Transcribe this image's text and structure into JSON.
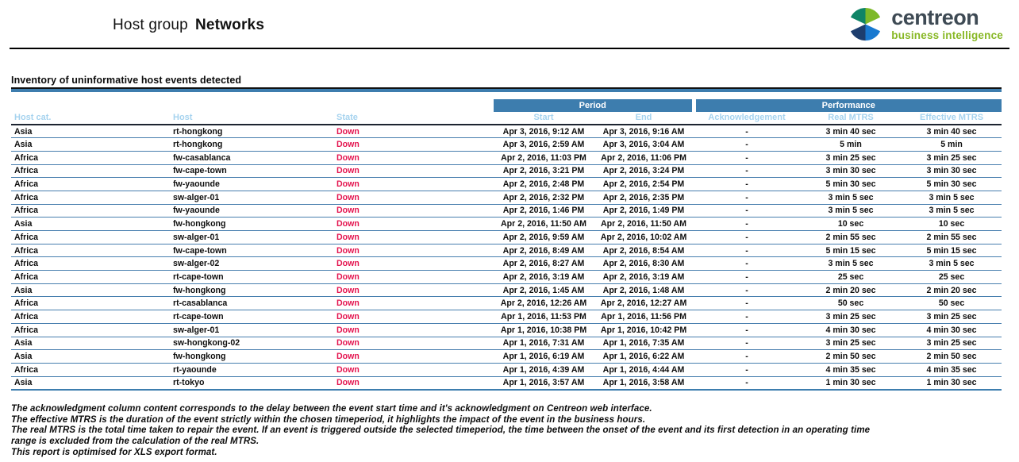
{
  "header": {
    "title_prefix": "Host group",
    "title_name": "Networks",
    "logo": {
      "brand": "centreon",
      "tagline": "business intelligence"
    }
  },
  "section": {
    "title": "Inventory of uninformative host events detected"
  },
  "table": {
    "group_headers": {
      "period": "Period",
      "performance": "Performance"
    },
    "columns": [
      "Host cat.",
      "Host",
      "State",
      "Start",
      "End",
      "Acknowledgement",
      "Real MTRS",
      "Effective MTRS"
    ],
    "rows": [
      {
        "host_cat": "Asia",
        "host": "rt-hongkong",
        "state": "Down",
        "start": "Apr 3, 2016, 9:12 AM",
        "end": "Apr 3, 2016, 9:16 AM",
        "ack": "-",
        "real_mtrs": "3 min 40 sec",
        "effective_mtrs": "3 min 40 sec"
      },
      {
        "host_cat": "Asia",
        "host": "rt-hongkong",
        "state": "Down",
        "start": "Apr 3, 2016, 2:59 AM",
        "end": "Apr 3, 2016, 3:04 AM",
        "ack": "-",
        "real_mtrs": "5 min",
        "effective_mtrs": "5 min"
      },
      {
        "host_cat": "Africa",
        "host": "fw-casablanca",
        "state": "Down",
        "start": "Apr 2, 2016, 11:03 PM",
        "end": "Apr 2, 2016, 11:06 PM",
        "ack": "-",
        "real_mtrs": "3 min 25 sec",
        "effective_mtrs": "3 min 25 sec"
      },
      {
        "host_cat": "Africa",
        "host": "fw-cape-town",
        "state": "Down",
        "start": "Apr 2, 2016, 3:21 PM",
        "end": "Apr 2, 2016, 3:24 PM",
        "ack": "-",
        "real_mtrs": "3 min 30 sec",
        "effective_mtrs": "3 min 30 sec"
      },
      {
        "host_cat": "Africa",
        "host": "fw-yaounde",
        "state": "Down",
        "start": "Apr 2, 2016, 2:48 PM",
        "end": "Apr 2, 2016, 2:54 PM",
        "ack": "-",
        "real_mtrs": "5 min 30 sec",
        "effective_mtrs": "5 min 30 sec"
      },
      {
        "host_cat": "Africa",
        "host": "sw-alger-01",
        "state": "Down",
        "start": "Apr 2, 2016, 2:32 PM",
        "end": "Apr 2, 2016, 2:35 PM",
        "ack": "-",
        "real_mtrs": "3 min 5 sec",
        "effective_mtrs": "3 min 5 sec"
      },
      {
        "host_cat": "Africa",
        "host": "fw-yaounde",
        "state": "Down",
        "start": "Apr 2, 2016, 1:46 PM",
        "end": "Apr 2, 2016, 1:49 PM",
        "ack": "-",
        "real_mtrs": "3 min 5 sec",
        "effective_mtrs": "3 min 5 sec"
      },
      {
        "host_cat": "Asia",
        "host": "fw-hongkong",
        "state": "Down",
        "start": "Apr 2, 2016, 11:50 AM",
        "end": "Apr 2, 2016, 11:50 AM",
        "ack": "-",
        "real_mtrs": "10 sec",
        "effective_mtrs": "10 sec"
      },
      {
        "host_cat": "Africa",
        "host": "sw-alger-01",
        "state": "Down",
        "start": "Apr 2, 2016, 9:59 AM",
        "end": "Apr 2, 2016, 10:02 AM",
        "ack": "-",
        "real_mtrs": "2 min 55 sec",
        "effective_mtrs": "2 min 55 sec"
      },
      {
        "host_cat": "Africa",
        "host": "fw-cape-town",
        "state": "Down",
        "start": "Apr 2, 2016, 8:49 AM",
        "end": "Apr 2, 2016, 8:54 AM",
        "ack": "-",
        "real_mtrs": "5 min 15 sec",
        "effective_mtrs": "5 min 15 sec"
      },
      {
        "host_cat": "Africa",
        "host": "sw-alger-02",
        "state": "Down",
        "start": "Apr 2, 2016, 8:27 AM",
        "end": "Apr 2, 2016, 8:30 AM",
        "ack": "-",
        "real_mtrs": "3 min 5 sec",
        "effective_mtrs": "3 min 5 sec"
      },
      {
        "host_cat": "Africa",
        "host": "rt-cape-town",
        "state": "Down",
        "start": "Apr 2, 2016, 3:19 AM",
        "end": "Apr 2, 2016, 3:19 AM",
        "ack": "-",
        "real_mtrs": "25 sec",
        "effective_mtrs": "25 sec"
      },
      {
        "host_cat": "Asia",
        "host": "fw-hongkong",
        "state": "Down",
        "start": "Apr 2, 2016, 1:45 AM",
        "end": "Apr 2, 2016, 1:48 AM",
        "ack": "-",
        "real_mtrs": "2 min 20 sec",
        "effective_mtrs": "2 min 20 sec"
      },
      {
        "host_cat": "Africa",
        "host": "rt-casablanca",
        "state": "Down",
        "start": "Apr 2, 2016, 12:26 AM",
        "end": "Apr 2, 2016, 12:27 AM",
        "ack": "-",
        "real_mtrs": "50 sec",
        "effective_mtrs": "50 sec"
      },
      {
        "host_cat": "Africa",
        "host": "rt-cape-town",
        "state": "Down",
        "start": "Apr 1, 2016, 11:53 PM",
        "end": "Apr 1, 2016, 11:56 PM",
        "ack": "-",
        "real_mtrs": "3 min 25 sec",
        "effective_mtrs": "3 min 25 sec"
      },
      {
        "host_cat": "Africa",
        "host": "sw-alger-01",
        "state": "Down",
        "start": "Apr 1, 2016, 10:38 PM",
        "end": "Apr 1, 2016, 10:42 PM",
        "ack": "-",
        "real_mtrs": "4 min 30 sec",
        "effective_mtrs": "4 min 30 sec"
      },
      {
        "host_cat": "Asia",
        "host": "sw-hongkong-02",
        "state": "Down",
        "start": "Apr 1, 2016, 7:31 AM",
        "end": "Apr 1, 2016, 7:35 AM",
        "ack": "-",
        "real_mtrs": "3 min 25 sec",
        "effective_mtrs": "3 min 25 sec"
      },
      {
        "host_cat": "Asia",
        "host": "fw-hongkong",
        "state": "Down",
        "start": "Apr 1, 2016, 6:19 AM",
        "end": "Apr 1, 2016, 6:22 AM",
        "ack": "-",
        "real_mtrs": "2 min 50 sec",
        "effective_mtrs": "2 min 50 sec"
      },
      {
        "host_cat": "Africa",
        "host": "rt-yaounde",
        "state": "Down",
        "start": "Apr 1, 2016, 4:39 AM",
        "end": "Apr 1, 2016, 4:44 AM",
        "ack": "-",
        "real_mtrs": "4 min 35 sec",
        "effective_mtrs": "4 min 35 sec"
      },
      {
        "host_cat": "Asia",
        "host": "rt-tokyo",
        "state": "Down",
        "start": "Apr 1, 2016, 3:57 AM",
        "end": "Apr 1, 2016, 3:58 AM",
        "ack": "-",
        "real_mtrs": "1 min 30 sec",
        "effective_mtrs": "1 min 30 sec"
      }
    ]
  },
  "footnotes": {
    "lines": [
      "The acknowledgment column content corresponds to the delay between the event start time and it's acknowledgment on Centreon web interface.",
      "The effective MTRS is the duration of the event strictly within the chosen timeperiod, it highlights the impact of the event in the business hours.",
      "The real MTRS is the total time taken to repair the event. If an event is triggered outside the selected timeperiod, the time between the onset of the event and its first detection in an operating time",
      "range  is excluded from the calculation of the real MTRS.",
      "This report is optimised for XLS export format."
    ]
  },
  "colors": {
    "accent_blue": "#3d7dae",
    "column_header_blue": "#a6d3ef",
    "row_line_blue": "#477eae",
    "state_down_red": "#e4134e",
    "logo_text_gray": "#3e4a54",
    "logo_green": "#88b825",
    "logo_mark_teal": "#0e8466",
    "logo_mark_green": "#7db928",
    "logo_mark_navy": "#1d3e6e",
    "logo_mark_blue": "#1879d0"
  }
}
